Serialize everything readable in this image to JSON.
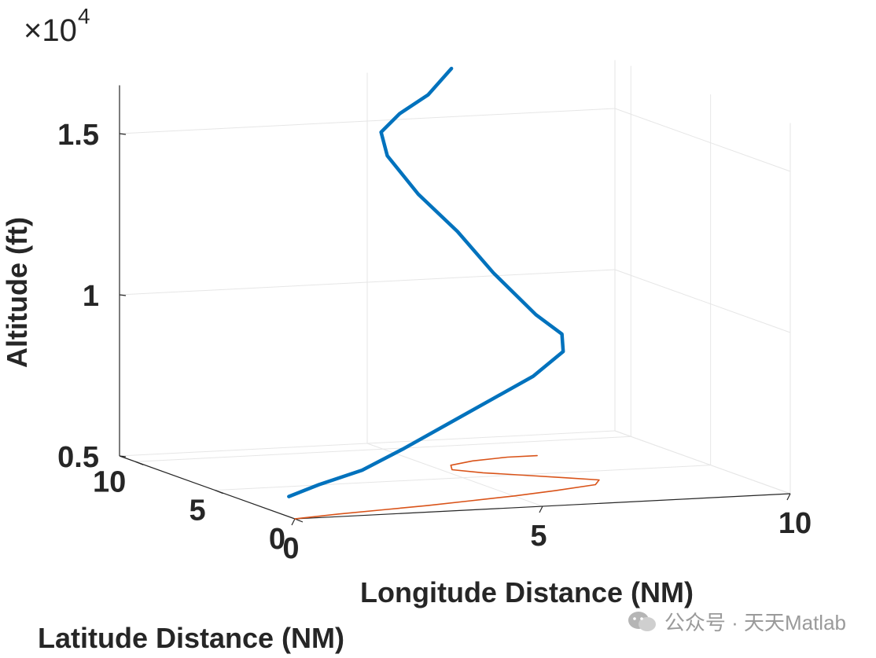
{
  "chart_data": {
    "type": "line3d",
    "exponent_label": {
      "base": "×10",
      "power": "4"
    },
    "xlabel": "Longitude Distance (NM)",
    "ylabel": "Latitude Distance (NM)",
    "zlabel": "Altitude (ft)",
    "x_ticks": [
      "0",
      "5",
      "10"
    ],
    "y_ticks": [
      "0",
      "5",
      "10"
    ],
    "z_ticks": [
      "0.5",
      "1",
      "1.5"
    ],
    "xlim": [
      0,
      10
    ],
    "ylim": [
      0,
      11
    ],
    "zlim": [
      5000,
      16500
    ],
    "grid": true,
    "series": [
      {
        "kind": "trajectory-3d",
        "color": "#0072BD",
        "points": [
          [
            0.2,
            1.0,
            5500
          ],
          [
            1.0,
            1.6,
            5700
          ],
          [
            2.0,
            2.0,
            6000
          ],
          [
            3.0,
            2.5,
            6500
          ],
          [
            4.0,
            2.9,
            7100
          ],
          [
            5.0,
            3.3,
            7700
          ],
          [
            6.0,
            3.7,
            8300
          ],
          [
            6.8,
            4.3,
            8900
          ],
          [
            7.0,
            5.0,
            9300
          ],
          [
            6.7,
            5.7,
            9800
          ],
          [
            6.1,
            6.5,
            11000
          ],
          [
            5.6,
            7.2,
            12200
          ],
          [
            5.0,
            7.8,
            13300
          ],
          [
            4.6,
            8.5,
            14400
          ],
          [
            4.7,
            9.2,
            15000
          ],
          [
            5.3,
            9.9,
            15400
          ],
          [
            6.1,
            10.6,
            15800
          ],
          [
            6.7,
            11.0,
            16500
          ]
        ]
      },
      {
        "kind": "ground-track",
        "color": "#D95319",
        "points": [
          [
            0.0,
            0.0
          ],
          [
            1.0,
            0.4
          ],
          [
            2.0,
            0.7
          ],
          [
            3.0,
            1.0
          ],
          [
            4.0,
            1.4
          ],
          [
            5.0,
            1.8
          ],
          [
            6.0,
            2.3
          ],
          [
            7.0,
            2.9
          ],
          [
            7.3,
            3.6
          ],
          [
            6.8,
            4.2
          ],
          [
            6.2,
            4.9
          ],
          [
            5.6,
            5.6
          ],
          [
            5.2,
            6.3
          ],
          [
            5.4,
            7.0
          ],
          [
            6.0,
            7.5
          ],
          [
            6.8,
            7.8
          ],
          [
            7.4,
            7.8
          ]
        ]
      }
    ]
  },
  "watermark": {
    "text": "公众号 · 天天Matlab",
    "icon": "wechat-icon"
  }
}
